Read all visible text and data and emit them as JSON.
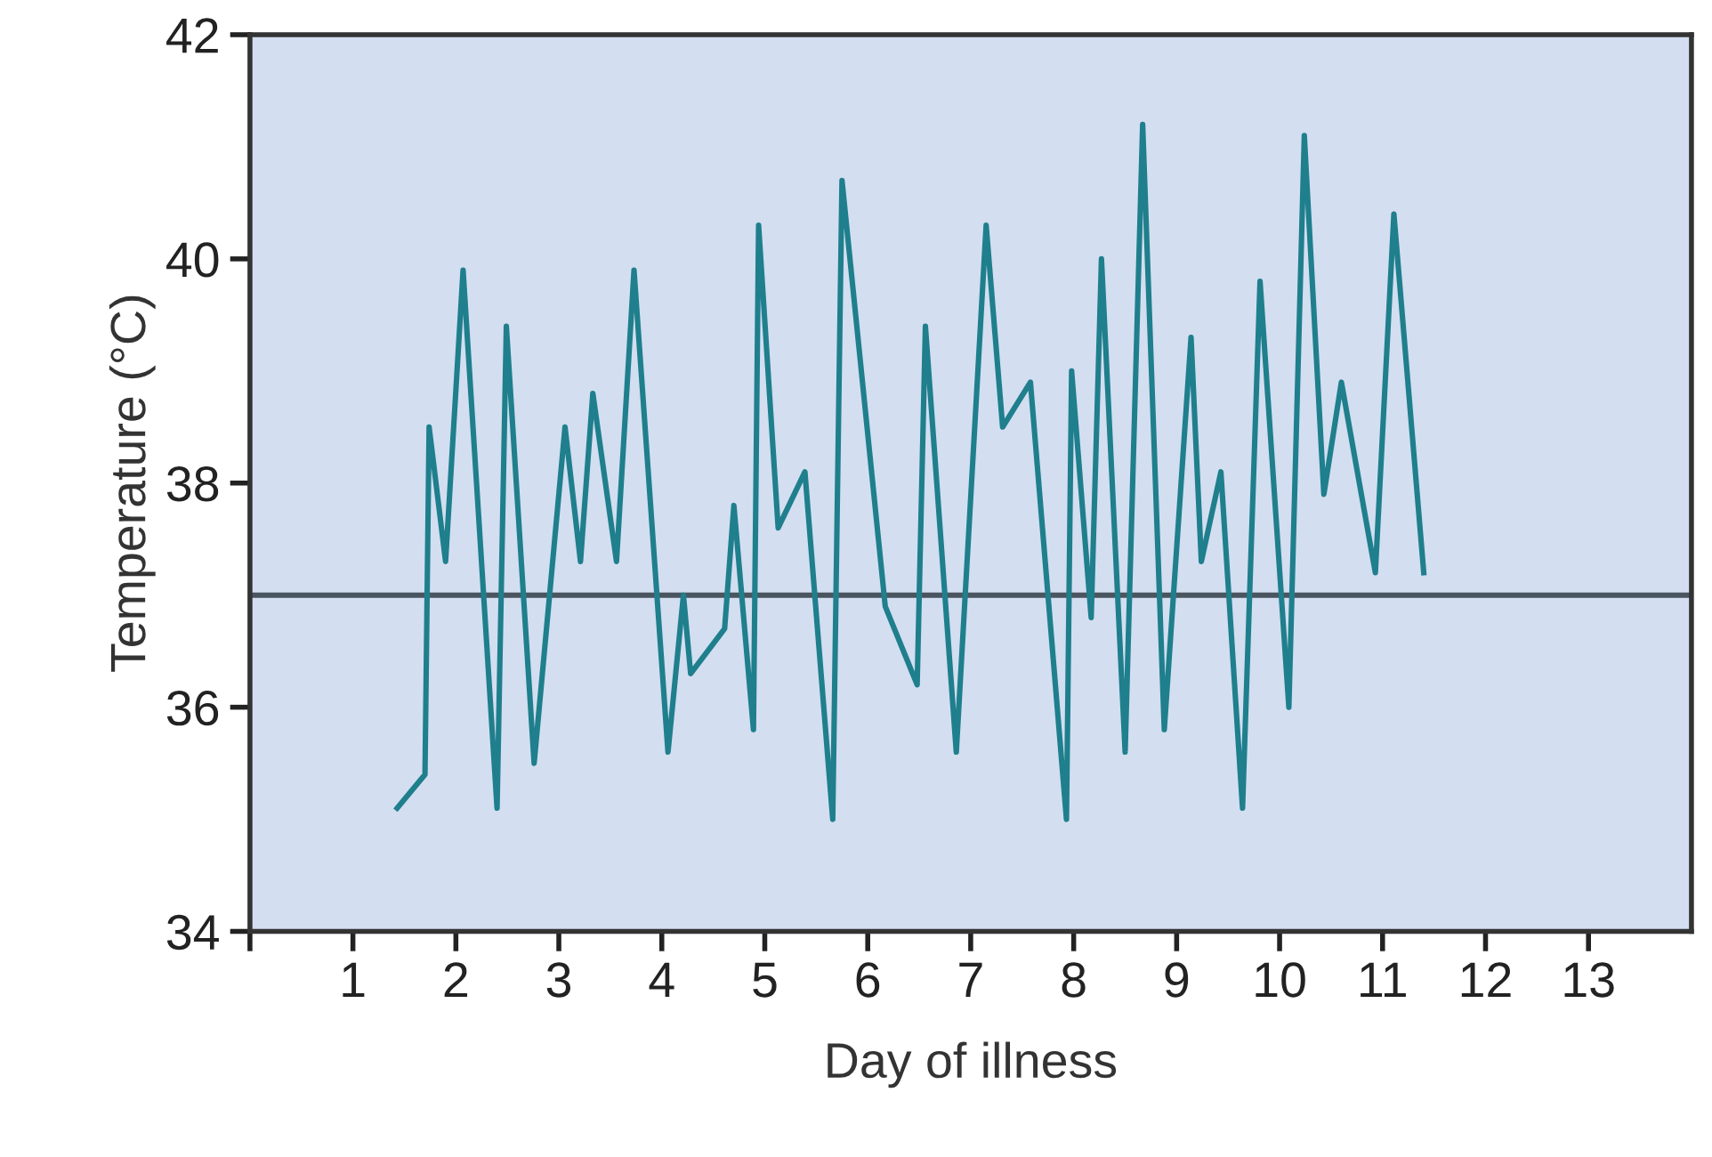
{
  "chart_data": {
    "type": "line",
    "xlabel": "Day of illness",
    "ylabel": "Temperature (°C)",
    "x": [
      1.43,
      1.7,
      1.74,
      1.9,
      2.07,
      2.4,
      2.49,
      2.76,
      3.06,
      3.21,
      3.33,
      3.56,
      3.73,
      4.06,
      4.21,
      4.28,
      4.61,
      4.7,
      4.89,
      4.94,
      5.13,
      5.39,
      5.66,
      5.75,
      6.17,
      6.48,
      6.56,
      6.86,
      7.15,
      7.31,
      7.58,
      7.93,
      7.98,
      8.17,
      8.27,
      8.5,
      8.67,
      8.88,
      9.14,
      9.24,
      9.43,
      9.64,
      9.81,
      10.09,
      10.24,
      10.43,
      10.6,
      10.93,
      11.11,
      11.4
    ],
    "series": [
      {
        "color": "#1f7f8c",
        "values": [
          35.1,
          35.4,
          38.5,
          37.3,
          39.9,
          35.1,
          39.4,
          35.5,
          38.5,
          37.3,
          38.8,
          37.3,
          39.9,
          35.6,
          37.0,
          36.3,
          36.7,
          37.8,
          35.8,
          40.3,
          37.6,
          38.1,
          35.0,
          40.7,
          36.9,
          36.2,
          39.4,
          35.6,
          40.3,
          38.5,
          38.9,
          35.0,
          39.0,
          36.8,
          40.0,
          35.6,
          41.2,
          35.8,
          39.3,
          37.3,
          38.1,
          35.1,
          39.8,
          36.0,
          41.1,
          37.9,
          38.9,
          37.2,
          40.4,
          37.2
        ]
      }
    ],
    "ref_lines": [
      {
        "axis": "y",
        "value": 37,
        "color": "#4a5560"
      }
    ],
    "xlim": [
      0,
      14
    ],
    "xticks": [
      {
        "value": 0,
        "label": null
      },
      1,
      2,
      3,
      4,
      5,
      6,
      7,
      8,
      9,
      10,
      11,
      12,
      13
    ],
    "ylim": [
      34,
      42
    ],
    "yticks": [
      34,
      36,
      38,
      40,
      42
    ],
    "grid": false,
    "legend": false,
    "marker": "none",
    "line_style": "solid"
  }
}
